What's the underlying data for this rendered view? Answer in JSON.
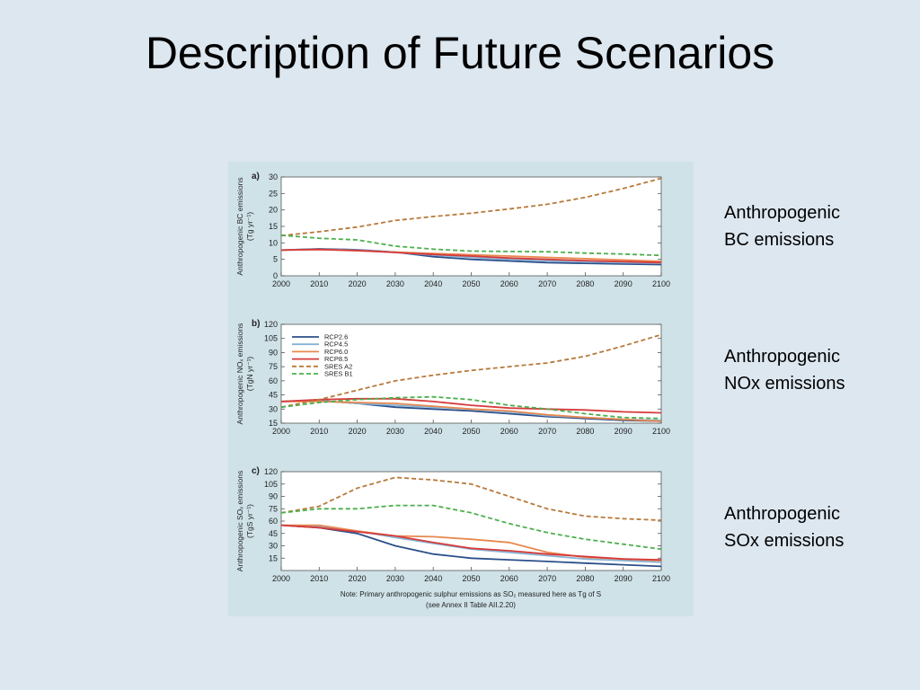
{
  "slide": {
    "title": "Description of Future Scenarios",
    "side_labels": [
      {
        "line1": "Anthropogenic",
        "line2": "BC emissions"
      },
      {
        "line1": "Anthropogenic",
        "line2": "NOx emissions"
      },
      {
        "line1": "Anthropogenic",
        "line2": "SOx emissions"
      }
    ]
  },
  "colors": {
    "RCP2.6": "#2b4f8a",
    "RCP4.5": "#86b4d6",
    "RCP6.0": "#e8884e",
    "RCP8.5": "#d63b3b",
    "SRES A2": "#b8793a",
    "SRES B1": "#4bb04b"
  },
  "chart_data": [
    {
      "type": "line",
      "panel": "a)",
      "ylabel": "Anthropogenic BC emissions",
      "yunit": "(Tg yr⁻¹)",
      "x": [
        2000,
        2010,
        2020,
        2030,
        2040,
        2050,
        2060,
        2070,
        2080,
        2090,
        2100
      ],
      "ylim": [
        0,
        30
      ],
      "yticks": [
        0,
        5,
        10,
        15,
        20,
        25,
        30
      ],
      "grid": false,
      "series": [
        {
          "name": "RCP2.6",
          "style": "solid",
          "values": [
            7.8,
            8.2,
            7.9,
            7.2,
            5.8,
            5.0,
            4.5,
            4.0,
            3.8,
            3.6,
            3.4
          ]
        },
        {
          "name": "RCP4.5",
          "style": "solid",
          "values": [
            7.8,
            8.1,
            7.8,
            7.1,
            6.3,
            5.6,
            5.0,
            4.6,
            4.3,
            4.0,
            3.8
          ]
        },
        {
          "name": "RCP6.0",
          "style": "solid",
          "values": [
            7.8,
            8.0,
            7.6,
            7.2,
            6.8,
            6.4,
            6.0,
            5.6,
            5.2,
            4.8,
            4.4
          ]
        },
        {
          "name": "RCP8.5",
          "style": "solid",
          "values": [
            7.8,
            8.0,
            7.7,
            7.1,
            6.5,
            6.0,
            5.4,
            5.0,
            4.6,
            4.3,
            4.0
          ]
        },
        {
          "name": "SRES A2",
          "style": "dashed",
          "values": [
            12.2,
            13.4,
            14.8,
            16.8,
            18.0,
            19.0,
            20.3,
            21.7,
            23.8,
            26.5,
            29.6
          ]
        },
        {
          "name": "SRES B1",
          "style": "dashed",
          "values": [
            12.3,
            11.4,
            10.9,
            9.0,
            8.1,
            7.5,
            7.4,
            7.3,
            6.9,
            6.6,
            6.2
          ]
        }
      ]
    },
    {
      "type": "line",
      "panel": "b)",
      "ylabel": "Anthropogenic NOₓ emissions",
      "yunit": "(TgN yr⁻¹)",
      "x": [
        2000,
        2010,
        2020,
        2030,
        2040,
        2050,
        2060,
        2070,
        2080,
        2090,
        2100
      ],
      "ylim": [
        15,
        120
      ],
      "yticks": [
        15,
        30,
        45,
        60,
        75,
        90,
        105,
        120
      ],
      "grid": false,
      "legend": {
        "position": "top-left",
        "entries": [
          "RCP2.6",
          "RCP4.5",
          "RCP6.0",
          "RCP8.5",
          "SRES A2",
          "SRES B1"
        ]
      },
      "series": [
        {
          "name": "RCP2.6",
          "style": "solid",
          "values": [
            38,
            39,
            36,
            32,
            30,
            28,
            25,
            22,
            20,
            18,
            17
          ]
        },
        {
          "name": "RCP4.5",
          "style": "solid",
          "values": [
            38,
            39,
            36,
            34,
            32,
            30,
            27,
            23,
            21,
            19,
            18
          ]
        },
        {
          "name": "RCP6.0",
          "style": "solid",
          "values": [
            38,
            38,
            37,
            36,
            33,
            30,
            28,
            24,
            21,
            19,
            17
          ]
        },
        {
          "name": "RCP8.5",
          "style": "solid",
          "values": [
            38,
            40,
            41,
            41,
            38,
            34,
            31,
            30,
            29,
            27,
            26
          ]
        },
        {
          "name": "SRES A2",
          "style": "dashed",
          "values": [
            32,
            40,
            50,
            60,
            66,
            71,
            75,
            79,
            86,
            97,
            109
          ]
        },
        {
          "name": "SRES B1",
          "style": "dashed",
          "values": [
            32,
            37,
            40,
            42,
            43,
            40,
            34,
            30,
            25,
            21,
            20
          ]
        }
      ]
    },
    {
      "type": "line",
      "panel": "c)",
      "ylabel": "Anthropogenic SOₓ emissions",
      "yunit": "(TgS yr⁻¹)",
      "x": [
        2000,
        2010,
        2020,
        2030,
        2040,
        2050,
        2060,
        2070,
        2080,
        2090,
        2100
      ],
      "ylim": [
        0,
        120
      ],
      "yticks": [
        15,
        30,
        45,
        60,
        75,
        90,
        105,
        120
      ],
      "grid": false,
      "note_line1": "Note: Primary anthropogenic sulphur emissions as SO₂ measured here as Tg of S",
      "note_line2": "(see Annex II Table AII.2.20)",
      "series": [
        {
          "name": "RCP2.6",
          "style": "solid",
          "values": [
            55,
            52,
            45,
            30,
            20,
            15,
            13,
            11,
            9,
            7,
            5
          ]
        },
        {
          "name": "RCP4.5",
          "style": "solid",
          "values": [
            55,
            54,
            48,
            40,
            33,
            26,
            22,
            18,
            14,
            12,
            10
          ]
        },
        {
          "name": "RCP6.0",
          "style": "solid",
          "values": [
            55,
            55,
            48,
            42,
            41,
            38,
            34,
            22,
            16,
            14,
            12
          ]
        },
        {
          "name": "RCP8.5",
          "style": "solid",
          "values": [
            55,
            52,
            47,
            42,
            34,
            27,
            24,
            20,
            17,
            14,
            13
          ]
        },
        {
          "name": "SRES A2",
          "style": "dashed",
          "values": [
            70,
            78,
            100,
            113,
            110,
            105,
            90,
            75,
            66,
            63,
            61
          ]
        },
        {
          "name": "SRES B1",
          "style": "dashed",
          "values": [
            70,
            75,
            75,
            79,
            79,
            70,
            57,
            46,
            38,
            32,
            26
          ]
        }
      ]
    }
  ]
}
